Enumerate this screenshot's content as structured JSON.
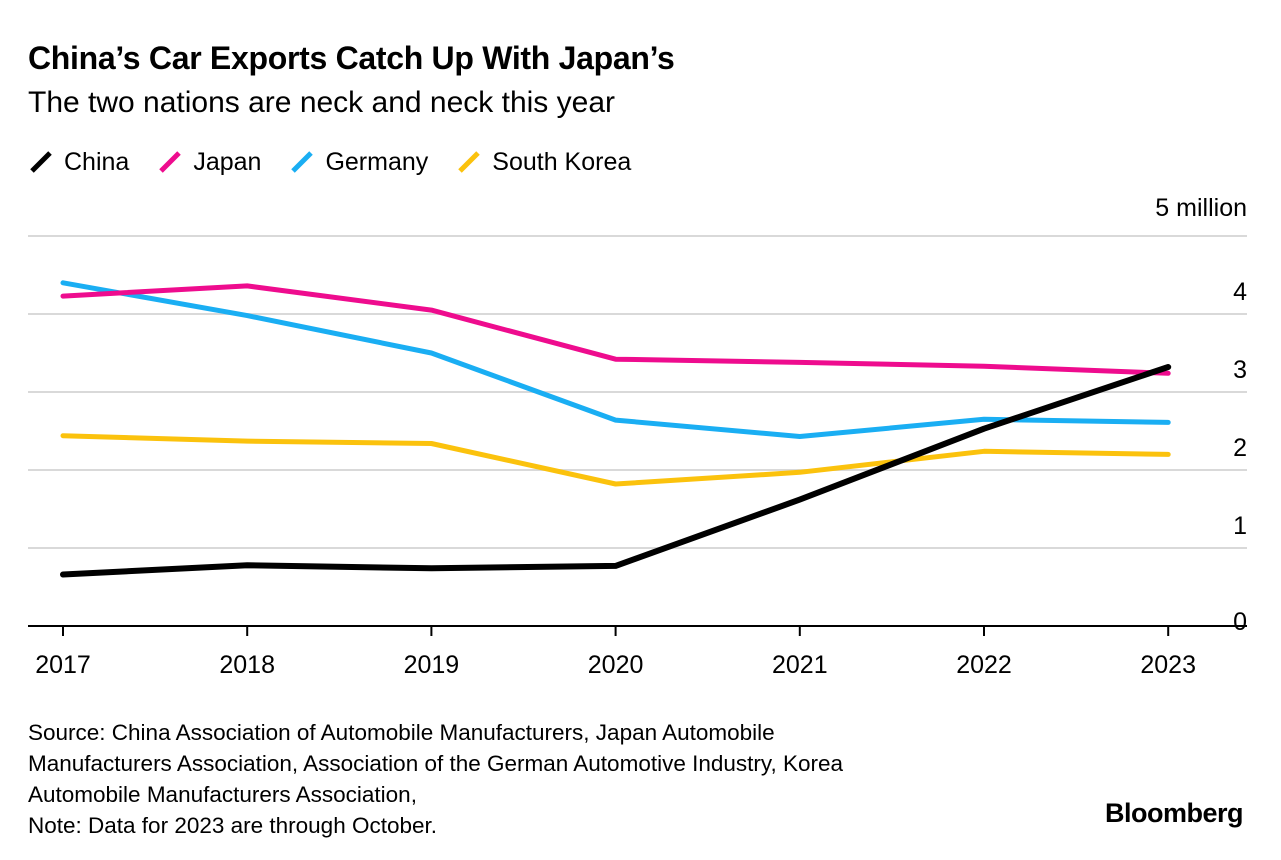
{
  "chart_data": {
    "type": "line",
    "title": "China’s Car Exports Catch Up With Japan’s",
    "subtitle": "The two nations are neck and neck this year",
    "x": [
      "2017",
      "2018",
      "2019",
      "2020",
      "2021",
      "2022",
      "2023"
    ],
    "ylim": [
      0,
      5
    ],
    "y_ticks": [
      "0",
      "1",
      "2",
      "3",
      "4",
      "5 million"
    ],
    "ylabel": "5 million",
    "xlabel": "",
    "grid": true,
    "legend_position": "top-left",
    "series": [
      {
        "name": "China",
        "color": "#000000",
        "values": [
          0.66,
          0.78,
          0.74,
          0.77,
          1.62,
          2.53,
          3.32
        ]
      },
      {
        "name": "Japan",
        "color": "#ee0c8e",
        "values": [
          4.23,
          4.36,
          4.05,
          3.42,
          3.38,
          3.33,
          3.24
        ]
      },
      {
        "name": "Germany",
        "color": "#1aaef3",
        "values": [
          4.4,
          3.98,
          3.5,
          2.64,
          2.43,
          2.65,
          2.61
        ]
      },
      {
        "name": "South Korea",
        "color": "#fbc20d",
        "values": [
          2.44,
          2.37,
          2.34,
          1.82,
          1.97,
          2.24,
          2.2
        ]
      }
    ]
  },
  "footer": {
    "source_lines": [
      "Source: China Association of Automobile Manufacturers, Japan Automobile",
      "Manufacturers Association, Association of the German Automotive Industry, Korea",
      "Automobile Manufacturers Association,",
      "Note: Data for 2023 are through October."
    ],
    "brand": "Bloomberg"
  }
}
